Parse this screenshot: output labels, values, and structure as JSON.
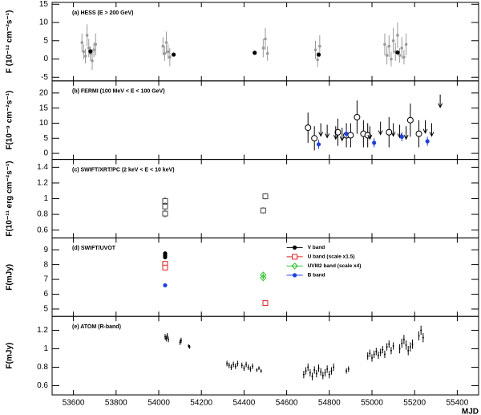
{
  "chart_data": [
    {
      "type": "scatter",
      "annotation": "(a) HESS (E > 200 GeV)",
      "ylabel": "F (10⁻¹² cm⁻²s⁻¹)",
      "xlim": [
        53500,
        55500
      ],
      "xticks": [
        53600,
        53800,
        54000,
        54200,
        54400,
        54600,
        54800,
        55000,
        55200,
        55400
      ],
      "ylim": [
        -6,
        15.5
      ],
      "yticks": [
        -5,
        0,
        5,
        10,
        15
      ],
      "series": [
        {
          "color": "#9a9a9a",
          "marker": "small-circle",
          "x": [
            53640,
            53648,
            53656,
            53664,
            53672,
            53680,
            53688,
            53696,
            53704,
            54020,
            54028,
            54036,
            54044,
            54052,
            54490,
            54500,
            54510,
            54735,
            54745,
            54755,
            55060,
            55070,
            55080,
            55090,
            55100,
            55110,
            55120,
            55130,
            55140,
            55150,
            55160
          ],
          "values": [
            4.5,
            2,
            0.8,
            6.5,
            3,
            1.5,
            -0.5,
            2.5,
            4,
            3.5,
            1.5,
            4.5,
            2,
            0.5,
            3,
            5.5,
            1.5,
            2.5,
            -0.2,
            3.5,
            4,
            1,
            3.5,
            0,
            5,
            2,
            6.5,
            1,
            3,
            0.5,
            4
          ],
          "errors": [
            2.5,
            2,
            2,
            3,
            2.5,
            2,
            2.5,
            2,
            3,
            2.5,
            2,
            3,
            2,
            2.5,
            2.5,
            3,
            2,
            2.5,
            2,
            3,
            3,
            2.5,
            3,
            2,
            3.5,
            2.5,
            3.5,
            2,
            3,
            2,
            3
          ]
        },
        {
          "color": "#000000",
          "marker": "filled-circle",
          "x": [
            53680,
            54070,
            54450,
            54750,
            55120
          ],
          "values": [
            2.1,
            1.2,
            1.7,
            1.2,
            1.8
          ]
        }
      ]
    },
    {
      "type": "scatter",
      "annotation": "(b) FERMI (100 MeV < E < 100 GeV)",
      "ylabel": "F(10⁻⁹ cm⁻²s⁻¹)",
      "xlim": [
        53500,
        55500
      ],
      "xticks": [
        53600,
        53800,
        54000,
        54200,
        54400,
        54600,
        54800,
        55000,
        55200,
        55400
      ],
      "ylim": [
        -2,
        24
      ],
      "yticks": [
        0,
        5,
        10,
        15,
        20
      ],
      "series": [
        {
          "color": "#000000",
          "marker": "open-circle",
          "x": [
            54700,
            54730,
            54840,
            54880,
            54900,
            54930,
            54960,
            54980,
            55080,
            55180,
            55220
          ],
          "values": [
            8.5,
            5,
            7,
            6,
            6,
            12,
            6.5,
            6,
            7,
            11,
            6.5
          ],
          "errors": [
            5,
            4,
            4.5,
            4,
            4,
            5.5,
            4.5,
            4,
            5,
            5.5,
            4.5
          ]
        },
        {
          "color": "#000000",
          "marker": "arrow",
          "x": [
            54760,
            54790,
            54830,
            54860,
            54990,
            55040,
            55100,
            55130,
            55160,
            55250,
            55280,
            55320
          ],
          "values": [
            10,
            9.5,
            9,
            8.5,
            9,
            10.5,
            10,
            9.5,
            9,
            11,
            10,
            19.5
          ]
        },
        {
          "color": "#1f3fdc",
          "marker": "filled-circle",
          "x": [
            54750,
            54880,
            55010,
            55140,
            55260
          ],
          "values": [
            3,
            6.5,
            3.5,
            5.5,
            4
          ],
          "errors": [
            1.5,
            1.5,
            1.5,
            1.5,
            1.5
          ]
        }
      ]
    },
    {
      "type": "scatter",
      "annotation": "(c) SWIFT/XRT/PC (2 keV < E < 10 keV)",
      "ylabel": "F(10⁻¹¹ erg cm⁻²s⁻¹)",
      "xlim": [
        53500,
        55500
      ],
      "xticks": [
        53600,
        53800,
        54000,
        54200,
        54400,
        54600,
        54800,
        55000,
        55200,
        55400
      ],
      "ylim": [
        0.5,
        1.5
      ],
      "yticks": [
        0.6,
        0.8,
        1,
        1.2,
        1.4
      ],
      "series": [
        {
          "color": "#444444",
          "marker": "open-square",
          "x": [
            54030,
            54030,
            54030,
            54490,
            54500
          ],
          "values": [
            0.97,
            0.9,
            0.81,
            0.85,
            1.03
          ],
          "errors": [
            0.05,
            0.05,
            0.05,
            0.04,
            0.04
          ]
        }
      ]
    },
    {
      "type": "scatter",
      "annotation": "(d) SWIFT/UVOT",
      "ylabel": "F(mJy)",
      "legend": "top-center",
      "xlim": [
        53500,
        55500
      ],
      "xticks": [
        53600,
        53800,
        54000,
        54200,
        54400,
        54600,
        54800,
        55000,
        55200,
        55400
      ],
      "ylim": [
        4.5,
        9.8
      ],
      "yticks": [
        5,
        6,
        7,
        8,
        9
      ],
      "series": [
        {
          "name": "V band",
          "color": "#000000",
          "marker": "filled-circle",
          "x": [
            54030,
            54030,
            54030
          ],
          "values": [
            8.75,
            8.5,
            8.62
          ],
          "errors": [
            0.12,
            0.12,
            0.12
          ]
        },
        {
          "name": "U band (scale x1.5)",
          "color": "#e02020",
          "marker": "open-square",
          "x": [
            54030,
            54030,
            54500
          ],
          "values": [
            8.05,
            7.8,
            5.4
          ],
          "errors": [
            0.12,
            0.12,
            0.05
          ]
        },
        {
          "name": "UVM2 band (scale x4)",
          "color": "#30c030",
          "marker": "open-diamond",
          "x": [
            54490,
            54490
          ],
          "values": [
            7.3,
            7.1
          ],
          "errors": [
            0.1,
            0.1
          ]
        },
        {
          "name": "B band",
          "color": "#1f3fdc",
          "marker": "filled-circle",
          "x": [
            54030
          ],
          "values": [
            6.6
          ]
        }
      ]
    },
    {
      "type": "scatter",
      "annotation": "(e) ATOM (R-band)",
      "ylabel": "F(mJy)",
      "xlabel": "MJD",
      "xlim": [
        53500,
        55500
      ],
      "xticks": [
        53600,
        53800,
        54000,
        54200,
        54400,
        54600,
        54800,
        55000,
        55200,
        55400
      ],
      "ylim": [
        0.5,
        1.35
      ],
      "yticks": [
        0.6,
        0.8,
        1,
        1.2
      ],
      "series": [
        {
          "color": "#000000",
          "marker": "dot",
          "x": [
            54030,
            54035,
            54040,
            54045,
            54100,
            54105,
            54140,
            54145,
            54320,
            54330,
            54340,
            54350,
            54360,
            54370,
            54390,
            54400,
            54410,
            54420,
            54430,
            54440,
            54460,
            54470,
            54480,
            54680,
            54690,
            54700,
            54710,
            54720,
            54730,
            54740,
            54750,
            54760,
            54770,
            54780,
            54790,
            54800,
            54810,
            54820,
            54880,
            54890,
            54980,
            54990,
            55000,
            55010,
            55020,
            55030,
            55040,
            55050,
            55060,
            55070,
            55080,
            55090,
            55100,
            55130,
            55140,
            55150,
            55160,
            55170,
            55180,
            55190,
            55220,
            55230,
            55240
          ],
          "values": [
            1.13,
            1.11,
            1.14,
            1.1,
            1.07,
            1.09,
            1.03,
            1.02,
            0.84,
            0.82,
            0.8,
            0.83,
            0.81,
            0.84,
            0.82,
            0.79,
            0.83,
            0.8,
            0.78,
            0.81,
            0.77,
            0.79,
            0.76,
            0.72,
            0.76,
            0.8,
            0.74,
            0.7,
            0.77,
            0.73,
            0.79,
            0.75,
            0.71,
            0.74,
            0.78,
            0.72,
            0.76,
            0.8,
            0.76,
            0.78,
            0.92,
            0.95,
            0.9,
            0.94,
            0.97,
            0.93,
            0.96,
            0.99,
            0.94,
            1.02,
            1.05,
            0.98,
            1.03,
            1,
            1.06,
            1.1,
            1.04,
            0.98,
            1.02,
            1.05,
            1.14,
            1.2,
            1.12
          ],
          "errors": [
            0.03,
            0.03,
            0.03,
            0.03,
            0.03,
            0.03,
            0.02,
            0.02,
            0.03,
            0.03,
            0.03,
            0.03,
            0.03,
            0.03,
            0.03,
            0.03,
            0.03,
            0.03,
            0.03,
            0.03,
            0.02,
            0.02,
            0.02,
            0.04,
            0.04,
            0.04,
            0.04,
            0.04,
            0.04,
            0.04,
            0.04,
            0.04,
            0.04,
            0.04,
            0.04,
            0.04,
            0.04,
            0.04,
            0.03,
            0.03,
            0.04,
            0.04,
            0.04,
            0.04,
            0.04,
            0.04,
            0.04,
            0.04,
            0.04,
            0.04,
            0.04,
            0.04,
            0.04,
            0.05,
            0.05,
            0.05,
            0.05,
            0.05,
            0.05,
            0.05,
            0.05,
            0.05,
            0.05
          ]
        }
      ]
    }
  ]
}
